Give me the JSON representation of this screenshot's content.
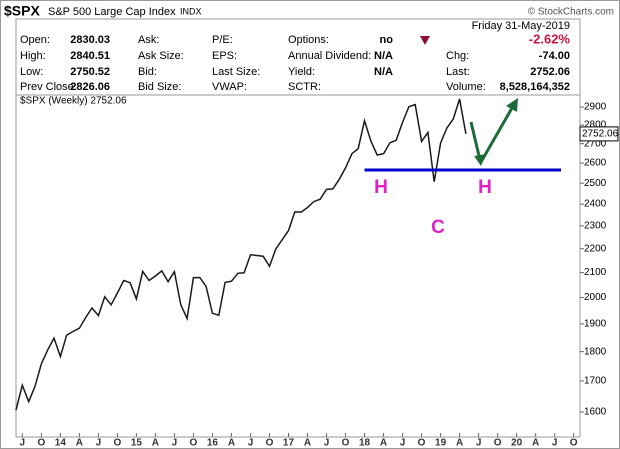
{
  "header": {
    "symbol": "$SPX",
    "name": "S&P 500 Large Cap Index",
    "exchange": "INDX",
    "copyright": "© StockCharts.com",
    "date": "Friday 31-May-2019",
    "rows": [
      [
        {
          "label": "Open:",
          "value": "2830.03"
        },
        {
          "label": "Ask:"
        },
        {
          "label": "P/E:"
        },
        {
          "label": "Options:",
          "value": "no"
        },
        {
          "value": "-2.62%"
        }
      ],
      [
        {
          "label": "High:",
          "value": "2840.51"
        },
        {
          "label": "Ask Size:"
        },
        {
          "label": "EPS:"
        },
        {
          "label": "Annual Dividend:",
          "value": "N/A"
        },
        {
          "label": "Chg:",
          "value": "-74.00"
        }
      ],
      [
        {
          "label": "Low:",
          "value": "2750.52"
        },
        {
          "label": "Bid:"
        },
        {
          "label": "Last Size:"
        },
        {
          "label": "Yield:",
          "value": "N/A"
        },
        {
          "label": "Last:",
          "value": "2752.06"
        }
      ],
      [
        {
          "label": "Prev Close:",
          "value": "2826.06"
        },
        {
          "label": "Bid Size:"
        },
        {
          "label": "VWAP:"
        },
        {
          "label": "SCTR:"
        },
        {
          "label": "Volume:",
          "value": "8,528,164,352"
        }
      ]
    ]
  },
  "chart_data": {
    "type": "line",
    "legend": "$SPX (Weekly) 2752.06",
    "last_label": "2752.06",
    "last_value": 2752.06,
    "log": true,
    "grid": false,
    "x": [
      "2013-06",
      "2013-07",
      "2013-08",
      "2013-09",
      "2013-10",
      "2013-11",
      "2013-12",
      "2014-01",
      "2014-02",
      "2014-03",
      "2014-04",
      "2014-05",
      "2014-06",
      "2014-07",
      "2014-08",
      "2014-09",
      "2014-10",
      "2014-11",
      "2014-12",
      "2015-01",
      "2015-02",
      "2015-03",
      "2015-04",
      "2015-05",
      "2015-06",
      "2015-07",
      "2015-08",
      "2015-09",
      "2015-10",
      "2015-11",
      "2015-12",
      "2016-01",
      "2016-02",
      "2016-03",
      "2016-04",
      "2016-05",
      "2016-06",
      "2016-07",
      "2016-08",
      "2016-09",
      "2016-10",
      "2016-11",
      "2016-12",
      "2017-01",
      "2017-02",
      "2017-03",
      "2017-04",
      "2017-05",
      "2017-06",
      "2017-07",
      "2017-08",
      "2017-09",
      "2017-10",
      "2017-11",
      "2017-12",
      "2018-01",
      "2018-02",
      "2018-03",
      "2018-04",
      "2018-05",
      "2018-06",
      "2018-07",
      "2018-08",
      "2018-09",
      "2018-10",
      "2018-11",
      "2018-12",
      "2019-01",
      "2019-02",
      "2019-03",
      "2019-04",
      "2019-05"
    ],
    "series": [
      {
        "name": "$SPX",
        "color": "#1a1a1a",
        "values": [
          1606,
          1686,
          1633,
          1682,
          1757,
          1806,
          1848,
          1783,
          1859,
          1872,
          1884,
          1924,
          1960,
          1931,
          2003,
          1972,
          2018,
          2068,
          2059,
          1995,
          2105,
          2068,
          2086,
          2107,
          2063,
          2104,
          1972,
          1920,
          2079,
          2080,
          2044,
          1940,
          1932,
          2060,
          2065,
          2097,
          2099,
          2174,
          2171,
          2168,
          2126,
          2199,
          2239,
          2279,
          2364,
          2363,
          2384,
          2412,
          2423,
          2470,
          2472,
          2519,
          2575,
          2648,
          2674,
          2824,
          2714,
          2641,
          2648,
          2705,
          2718,
          2816,
          2902,
          2914,
          2712,
          2760,
          2507,
          2704,
          2784,
          2834,
          2946,
          2752
        ]
      }
    ],
    "support": {
      "value": 2565,
      "from": "2018-01",
      "to": "2020-08",
      "color": "#0000cc"
    },
    "annotations": [
      "H",
      "C",
      "H"
    ],
    "xlim": [
      "2013-06",
      "2020-11"
    ],
    "xticks": [
      {
        "value": "2013-07",
        "label": "J"
      },
      {
        "value": "2013-10",
        "label": "O"
      },
      {
        "value": "2014-01",
        "label": "14"
      },
      {
        "value": "2014-04",
        "label": "A"
      },
      {
        "value": "2014-07",
        "label": "J"
      },
      {
        "value": "2014-10",
        "label": "O"
      },
      {
        "value": "2015-01",
        "label": "15"
      },
      {
        "value": "2015-04",
        "label": "A"
      },
      {
        "value": "2015-07",
        "label": "J"
      },
      {
        "value": "2015-10",
        "label": "O"
      },
      {
        "value": "2016-01",
        "label": "16"
      },
      {
        "value": "2016-04",
        "label": "A"
      },
      {
        "value": "2016-07",
        "label": "J"
      },
      {
        "value": "2016-10",
        "label": "O"
      },
      {
        "value": "2017-01",
        "label": "17"
      },
      {
        "value": "2017-04",
        "label": "A"
      },
      {
        "value": "2017-07",
        "label": "J"
      },
      {
        "value": "2017-10",
        "label": "O"
      },
      {
        "value": "2018-01",
        "label": "18"
      },
      {
        "value": "2018-04",
        "label": "A"
      },
      {
        "value": "2018-07",
        "label": "J"
      },
      {
        "value": "2018-10",
        "label": "O"
      },
      {
        "value": "2019-01",
        "label": "19"
      },
      {
        "value": "2019-04",
        "label": "A"
      },
      {
        "value": "2019-07",
        "label": "J"
      },
      {
        "value": "2019-10",
        "label": "O"
      },
      {
        "value": "2020-01",
        "label": "20"
      },
      {
        "value": "2020-04",
        "label": "A"
      },
      {
        "value": "2020-07",
        "label": "J"
      },
      {
        "value": "2020-10",
        "label": "O"
      }
    ],
    "ylim": [
      1524,
      2969
    ],
    "yticks": [
      1600,
      1700,
      1800,
      1900,
      2000,
      2100,
      2200,
      2300,
      2400,
      2500,
      2600,
      2700,
      2800,
      2900
    ]
  }
}
